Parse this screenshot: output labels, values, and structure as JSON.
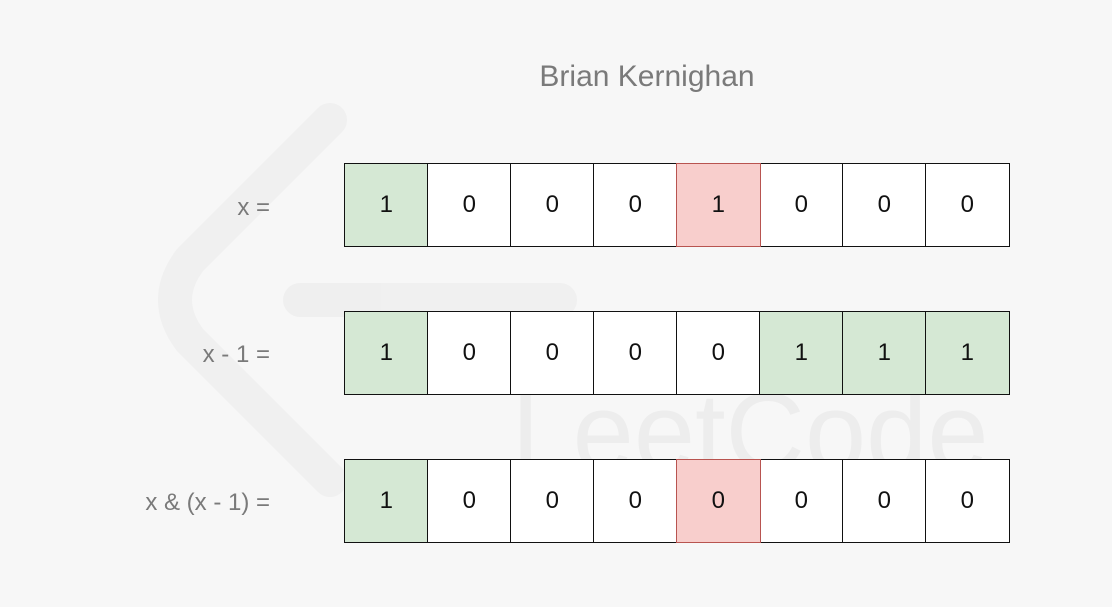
{
  "title": "Brian Kernighan",
  "colors": {
    "background": "#f7f7f7",
    "cell": "#ffffff",
    "green_highlight": "#d5e8d4",
    "red_highlight": "#f8cecc",
    "red_border": "#b85450",
    "label_text": "#7a7a7a"
  },
  "watermark_text": "LeetCode",
  "rows": [
    {
      "label": "x =",
      "bits": [
        "1",
        "0",
        "0",
        "0",
        "1",
        "0",
        "0",
        "0"
      ],
      "highlight": [
        "green",
        "",
        "",
        "",
        "red",
        "",
        "",
        ""
      ]
    },
    {
      "label": "x - 1 =",
      "bits": [
        "1",
        "0",
        "0",
        "0",
        "0",
        "1",
        "1",
        "1"
      ],
      "highlight": [
        "green",
        "",
        "",
        "",
        "",
        "green",
        "green",
        "green"
      ]
    },
    {
      "label": "x & (x - 1) =",
      "bits": [
        "1",
        "0",
        "0",
        "0",
        "0",
        "0",
        "0",
        "0"
      ],
      "highlight": [
        "green",
        "",
        "",
        "",
        "red",
        "",
        "",
        ""
      ]
    }
  ]
}
